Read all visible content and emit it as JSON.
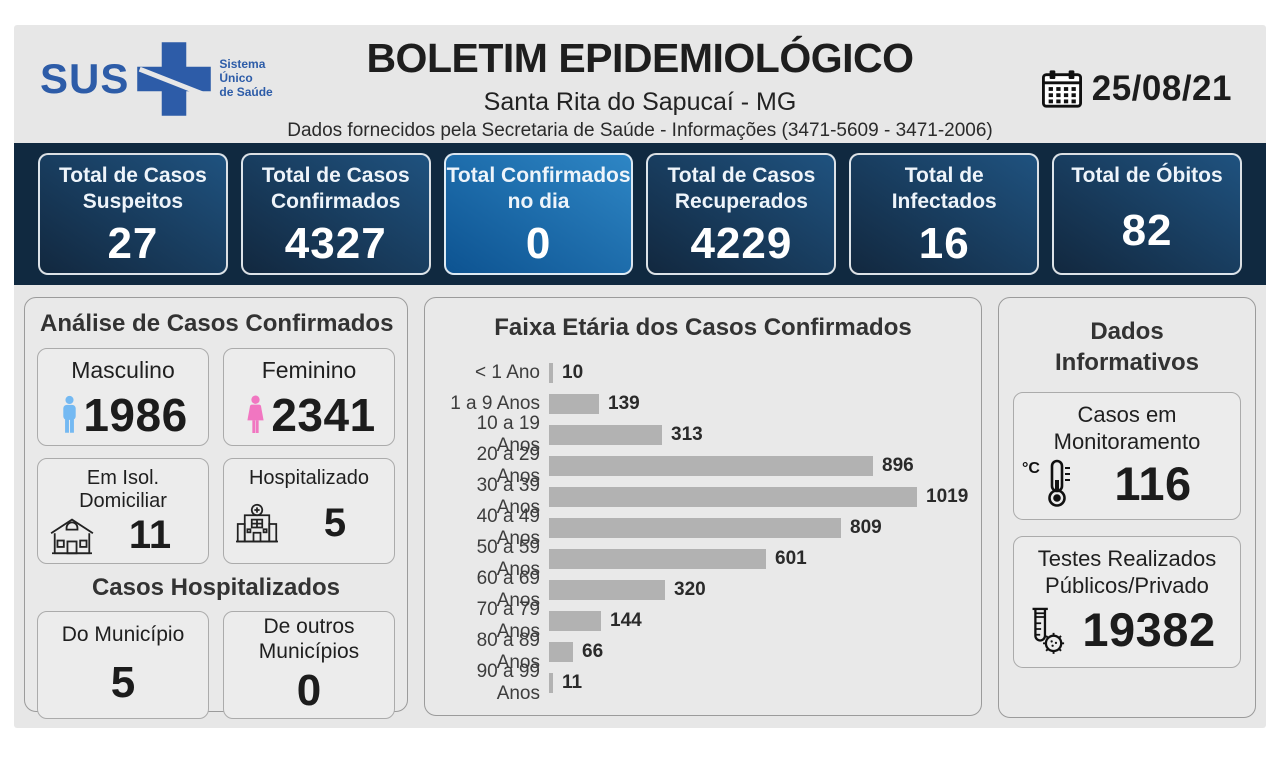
{
  "colors": {
    "accent_blue": "#2d5ca8",
    "navy_bar": "#102940",
    "card_dark_from": "#12283f",
    "card_dark_to": "#1f527f",
    "card_bright_from": "#0d5391",
    "card_bright_to": "#2e86c5",
    "bar_fill": "#b2b2b2",
    "male_icon": "#74b9f2",
    "female_icon": "#f176c1",
    "page_bg": "#e7e7e7",
    "panel_bg": "#e9e9e9"
  },
  "header": {
    "logo_text": "SUS",
    "logo_tagline": "Sistema\nÚnico\nde Saúde",
    "title": "BOLETIM EPIDEMIOLÓGICO",
    "subtitle": "Santa Rita do Sapucaí - MG",
    "info_line": "Dados fornecidos pela Secretaria de Saúde - Informações (3471-5609 - 3471-2006)",
    "date": "25/08/21"
  },
  "stats": [
    {
      "label": "Total de Casos Suspeitos",
      "value": "27",
      "tone": "dark"
    },
    {
      "label": "Total de Casos Confirmados",
      "value": "4327",
      "tone": "dark"
    },
    {
      "label": "Total Confirmados no dia",
      "value": "0",
      "tone": "bright"
    },
    {
      "label": "Total de Casos Recuperados",
      "value": "4229",
      "tone": "dark"
    },
    {
      "label": "Total de Infectados",
      "value": "16",
      "tone": "dark"
    },
    {
      "label": "Total de Óbitos",
      "value": "82",
      "tone": "dark"
    }
  ],
  "analysis": {
    "title": "Análise de Casos Confirmados",
    "male_label": "Masculino",
    "male_value": "1986",
    "female_label": "Feminino",
    "female_value": "2341",
    "isolation_label": "Em Isol.\nDomiciliar",
    "isolation_value": "11",
    "hospitalized_label": "Hospitalizado",
    "hospitalized_value": "5",
    "hospitalized_title": "Casos Hospitalizados",
    "municipality_label": "Do Município",
    "municipality_value": "5",
    "other_label": "De outros\nMunicípios",
    "other_value": "0"
  },
  "chart_data": {
    "type": "bar",
    "orientation": "horizontal",
    "title": "Faixa Etária dos Casos Confirmados",
    "categories": [
      "< 1 Ano",
      "1 a 9 Anos",
      "10 a 19 Anos",
      "20 a 29 Anos",
      "30 a 39 Anos",
      "40 a 49 Anos",
      "50 a 59 Anos",
      "60 a 69 Anos",
      "70 a 79 Anos",
      "80 a 89 Anos",
      "90 a 99 Anos"
    ],
    "values": [
      10,
      139,
      313,
      896,
      1019,
      809,
      601,
      320,
      144,
      66,
      11
    ],
    "xlim": [
      0,
      1019
    ],
    "value_labels": true,
    "grid": false,
    "legend": "none",
    "bar_color": "#b2b2b2"
  },
  "info": {
    "title": "Dados\nInformativos",
    "monitoring_label": "Casos em\nMonitoramento",
    "monitoring_unit": "°C",
    "monitoring_value": "116",
    "tests_label": "Testes Realizados\nPúblicos/Privado",
    "tests_value": "19382"
  }
}
